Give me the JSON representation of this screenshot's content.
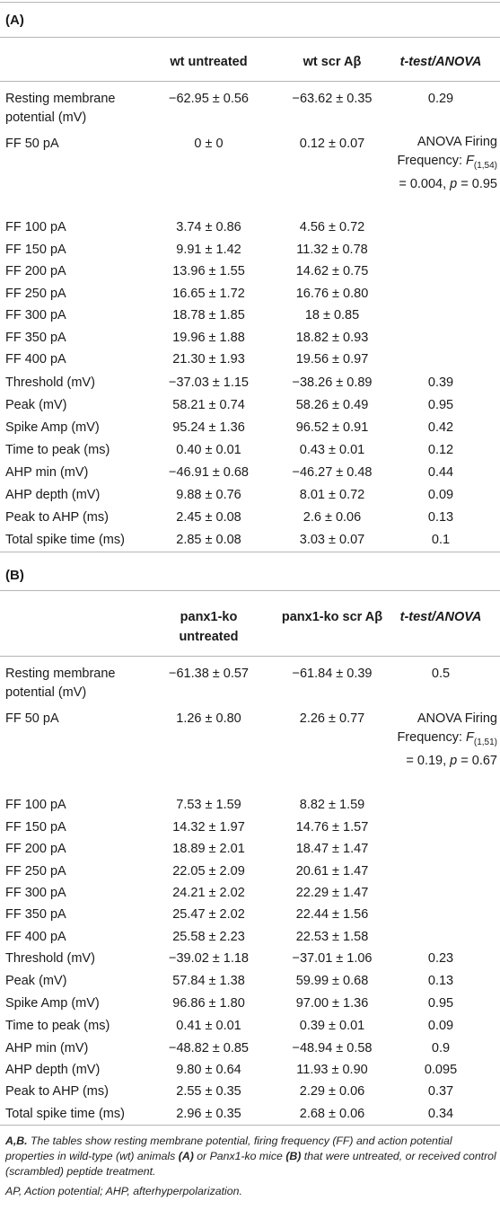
{
  "section_a": {
    "label": "(A)",
    "headers": [
      "wt untreated",
      "wt scr Aβ",
      "t-test/ANOVA"
    ],
    "rows": [
      {
        "label": "Resting membrane potential (mV)",
        "v1": "−62.95 ± 0.56",
        "v2": "−63.62 ± 0.35",
        "v3": "0.29"
      },
      {
        "label": "FF 50 pA",
        "v1": "0 ± 0",
        "v2": "0.12 ± 0.07",
        "v3": ""
      },
      {
        "label": "FF 100 pA",
        "v1": "3.74 ± 0.86",
        "v2": "4.56 ± 0.72",
        "v3": ""
      },
      {
        "label": "FF 150 pA",
        "v1": "9.91 ± 1.42",
        "v2": "11.32 ± 0.78",
        "v3": ""
      },
      {
        "label": "FF 200 pA",
        "v1": "13.96 ± 1.55",
        "v2": "14.62 ± 0.75",
        "v3": ""
      },
      {
        "label": "FF 250 pA",
        "v1": "16.65 ± 1.72",
        "v2": "16.76 ± 0.80",
        "v3": ""
      },
      {
        "label": "FF 300 pA",
        "v1": "18.78 ± 1.85",
        "v2": "18 ± 0.85",
        "v3": ""
      },
      {
        "label": "FF 350 pA",
        "v1": "19.96 ± 1.88",
        "v2": "18.82 ± 0.93",
        "v3": ""
      },
      {
        "label": "FF 400 pA",
        "v1": "21.30 ± 1.93",
        "v2": "19.56 ± 0.97",
        "v3": ""
      },
      {
        "label": "Threshold (mV)",
        "v1": "−37.03 ± 1.15",
        "v2": "−38.26 ± 0.89",
        "v3": "0.39"
      },
      {
        "label": "Peak (mV)",
        "v1": "58.21 ± 0.74",
        "v2": "58.26 ± 0.49",
        "v3": "0.95"
      },
      {
        "label": "Spike Amp (mV)",
        "v1": "95.24 ± 1.36",
        "v2": "96.52 ± 0.91",
        "v3": "0.42"
      },
      {
        "label": "Time to peak (ms)",
        "v1": "0.40 ± 0.01",
        "v2": "0.43 ± 0.01",
        "v3": "0.12"
      },
      {
        "label": "AHP min (mV)",
        "v1": "−46.91 ± 0.68",
        "v2": "−46.27 ± 0.48",
        "v3": "0.44"
      },
      {
        "label": "AHP depth (mV)",
        "v1": "9.88 ± 0.76",
        "v2": "8.01 ± 0.72",
        "v3": "0.09"
      },
      {
        "label": "Peak to AHP (ms)",
        "v1": "2.45 ± 0.08",
        "v2": "2.6 ± 0.06",
        "v3": "0.13"
      },
      {
        "label": "Total spike time (ms)",
        "v1": "2.85 ± 0.08",
        "v2": "3.03 ± 0.07",
        "v3": "0.1"
      }
    ],
    "anova": {
      "line1": "ANOVA Firing",
      "line2": "Frequency: ",
      "stat": "F",
      "sub": "(1,54)",
      "line3a": "= 0.004, ",
      "p": "p",
      "line3b": " = 0.95"
    }
  },
  "section_b": {
    "label": "(B)",
    "headers": [
      "panx1-ko untreated",
      "panx1-ko scr Aβ",
      "t-test/ANOVA"
    ],
    "rows": [
      {
        "label": "Resting membrane potential (mV)",
        "v1": "−61.38 ± 0.57",
        "v2": "−61.84 ± 0.39",
        "v3": "0.5"
      },
      {
        "label": "FF 50 pA",
        "v1": "1.26 ± 0.80",
        "v2": "2.26 ± 0.77",
        "v3": ""
      },
      {
        "label": "FF 100 pA",
        "v1": "7.53 ± 1.59",
        "v2": "8.82 ± 1.59",
        "v3": ""
      },
      {
        "label": "FF 150 pA",
        "v1": "14.32 ± 1.97",
        "v2": "14.76 ± 1.57",
        "v3": ""
      },
      {
        "label": "FF 200 pA",
        "v1": "18.89 ± 2.01",
        "v2": "18.47 ± 1.47",
        "v3": ""
      },
      {
        "label": "FF 250 pA",
        "v1": "22.05 ± 2.09",
        "v2": "20.61 ± 1.47",
        "v3": ""
      },
      {
        "label": "FF 300 pA",
        "v1": "24.21 ± 2.02",
        "v2": "22.29 ± 1.47",
        "v3": ""
      },
      {
        "label": "FF 350 pA",
        "v1": "25.47 ± 2.02",
        "v2": "22.44 ± 1.56",
        "v3": ""
      },
      {
        "label": "FF 400 pA",
        "v1": "25.58 ± 2.23",
        "v2": "22.53 ± 1.58",
        "v3": ""
      },
      {
        "label": "Threshold (mV)",
        "v1": "−39.02 ± 1.18",
        "v2": "−37.01 ± 1.06",
        "v3": "0.23"
      },
      {
        "label": "Peak (mV)",
        "v1": "57.84 ± 1.38",
        "v2": "59.99 ± 0.68",
        "v3": "0.13"
      },
      {
        "label": "Spike Amp (mV)",
        "v1": "96.86 ± 1.80",
        "v2": "97.00 ± 1.36",
        "v3": "0.95"
      },
      {
        "label": "Time to peak (ms)",
        "v1": "0.41 ± 0.01",
        "v2": "0.39 ± 0.01",
        "v3": "0.09"
      },
      {
        "label": "AHP min (mV)",
        "v1": "−48.82 ± 0.85",
        "v2": "−48.94 ± 0.58",
        "v3": "0.9"
      },
      {
        "label": "AHP depth (mV)",
        "v1": "9.80 ± 0.64",
        "v2": "11.93 ± 0.90",
        "v3": "0.095"
      },
      {
        "label": "Peak to AHP (ms)",
        "v1": "2.55 ± 0.35",
        "v2": "2.29 ± 0.06",
        "v3": "0.37"
      },
      {
        "label": "Total spike time (ms)",
        "v1": "2.96 ± 0.35",
        "v2": "2.68 ± 0.06",
        "v3": "0.34"
      }
    ],
    "anova": {
      "line1": "ANOVA Firing",
      "line2": "Frequency: ",
      "stat": "F",
      "sub": "(1,51)",
      "line3a": "= 0.19, ",
      "p": "p",
      "line3b": " = 0.67"
    }
  },
  "footnote": {
    "panels": "A,B.",
    "text1": " The tables show resting membrane potential, firing frequency (FF) and action potential properties in wild-type (wt) animals ",
    "a": "(A)",
    "text2": " or Panx1-ko mice ",
    "b": "(B)",
    "text3": " that were untreated, or received control (scrambled) peptide treatment.",
    "abbrev": "AP, Action potential; AHP, afterhyperpolarization."
  }
}
